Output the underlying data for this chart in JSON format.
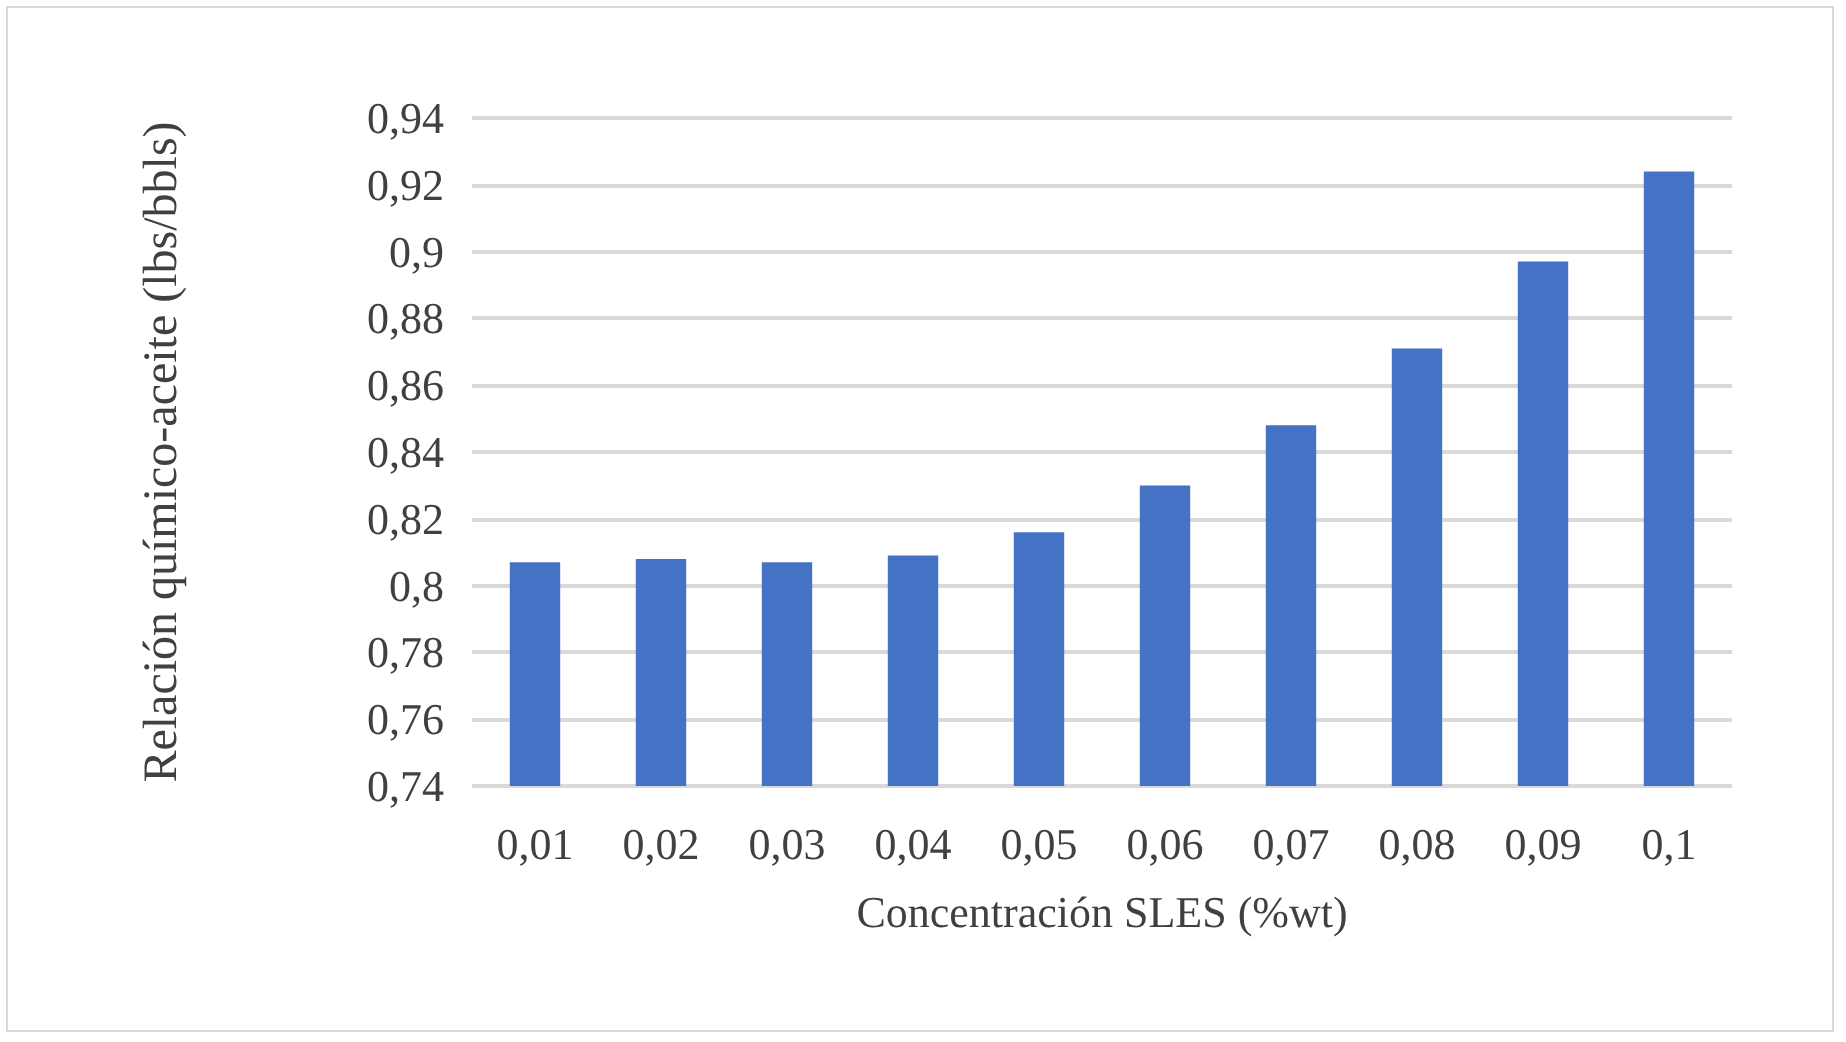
{
  "chart_data": {
    "type": "bar",
    "xlabel": "Concentración SLES (%wt)",
    "ylabel": "Relación químico-aceite (lbs/bbls)",
    "categories": [
      "0,01",
      "0,02",
      "0,03",
      "0,04",
      "0,05",
      "0,06",
      "0,07",
      "0,08",
      "0,09",
      "0,1"
    ],
    "values": [
      0.807,
      0.808,
      0.807,
      0.809,
      0.816,
      0.83,
      0.848,
      0.871,
      0.897,
      0.924
    ],
    "color": "#4472c4",
    "ylim": [
      0.74,
      0.94
    ],
    "yticks": [
      {
        "value": 0.74,
        "label": "0,74"
      },
      {
        "value": 0.76,
        "label": "0,76"
      },
      {
        "value": 0.78,
        "label": "0,78"
      },
      {
        "value": 0.8,
        "label": "0,8"
      },
      {
        "value": 0.82,
        "label": "0,82"
      },
      {
        "value": 0.84,
        "label": "0,84"
      },
      {
        "value": 0.86,
        "label": "0,86"
      },
      {
        "value": 0.88,
        "label": "0,88"
      },
      {
        "value": 0.9,
        "label": "0,9"
      },
      {
        "value": 0.92,
        "label": "0,92"
      },
      {
        "value": 0.94,
        "label": "0,94"
      }
    ],
    "grid": true
  }
}
